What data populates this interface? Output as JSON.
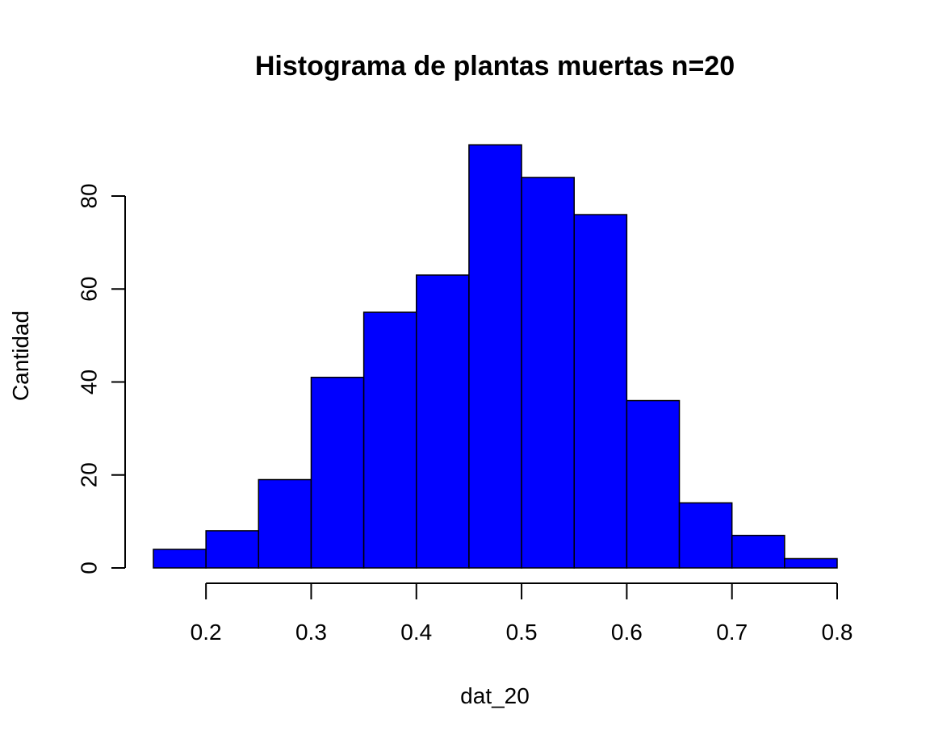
{
  "chart_data": {
    "type": "bar",
    "title": "Histograma de plantas muertas n=20",
    "xlabel": "dat_20",
    "ylabel": "Cantidad",
    "bins": [
      [
        0.15,
        0.2
      ],
      [
        0.2,
        0.25
      ],
      [
        0.25,
        0.3
      ],
      [
        0.3,
        0.35
      ],
      [
        0.35,
        0.4
      ],
      [
        0.4,
        0.45
      ],
      [
        0.45,
        0.5
      ],
      [
        0.5,
        0.55
      ],
      [
        0.55,
        0.6
      ],
      [
        0.6,
        0.65
      ],
      [
        0.65,
        0.7
      ],
      [
        0.7,
        0.75
      ],
      [
        0.75,
        0.8
      ]
    ],
    "values": [
      4,
      8,
      19,
      41,
      55,
      63,
      91,
      84,
      76,
      36,
      14,
      7,
      2
    ],
    "xlim": [
      0.15,
      0.8
    ],
    "ylim": [
      0,
      91
    ],
    "xticks": [
      0.2,
      0.3,
      0.4,
      0.5,
      0.6,
      0.7,
      0.8
    ],
    "xtick_labels": [
      "0.2",
      "0.3",
      "0.4",
      "0.5",
      "0.6",
      "0.7",
      "0.8"
    ],
    "yticks": [
      0,
      20,
      40,
      60,
      80
    ],
    "ytick_labels": [
      "0",
      "20",
      "40",
      "60",
      "80"
    ],
    "bar_color": "#0000ff",
    "bar_border_color": "#000000",
    "grid": false,
    "legend": "none"
  }
}
